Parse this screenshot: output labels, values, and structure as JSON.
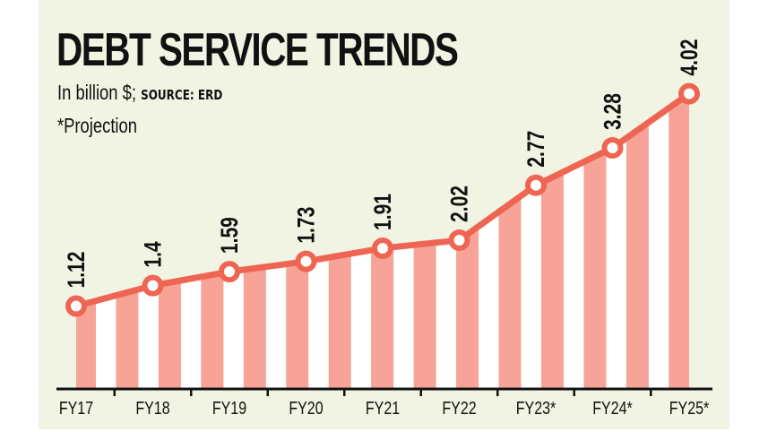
{
  "chart_data": {
    "type": "line",
    "title": "DEBT SERVICE TRENDS",
    "subtitle": "In billion $;",
    "source": "SOURCE: ERD",
    "note": "*Projection",
    "categories": [
      "FY17",
      "FY18",
      "FY19",
      "FY20",
      "FY21",
      "FY22",
      "FY23*",
      "FY24*",
      "FY25*"
    ],
    "values": [
      1.12,
      1.4,
      1.59,
      1.73,
      1.91,
      2.02,
      2.77,
      3.28,
      4.02
    ],
    "data_labels": [
      "1.12",
      "1.4",
      "1.59",
      "1.73",
      "1.91",
      "2.02",
      "2.77",
      "3.28",
      "4.02"
    ],
    "ylim": [
      0,
      4.5
    ],
    "grid": false,
    "colors": {
      "line": "#ef6553",
      "fill_stripe": "#f8a398",
      "fill_gap": "#ffffff",
      "background": "#f1f4e2"
    }
  }
}
